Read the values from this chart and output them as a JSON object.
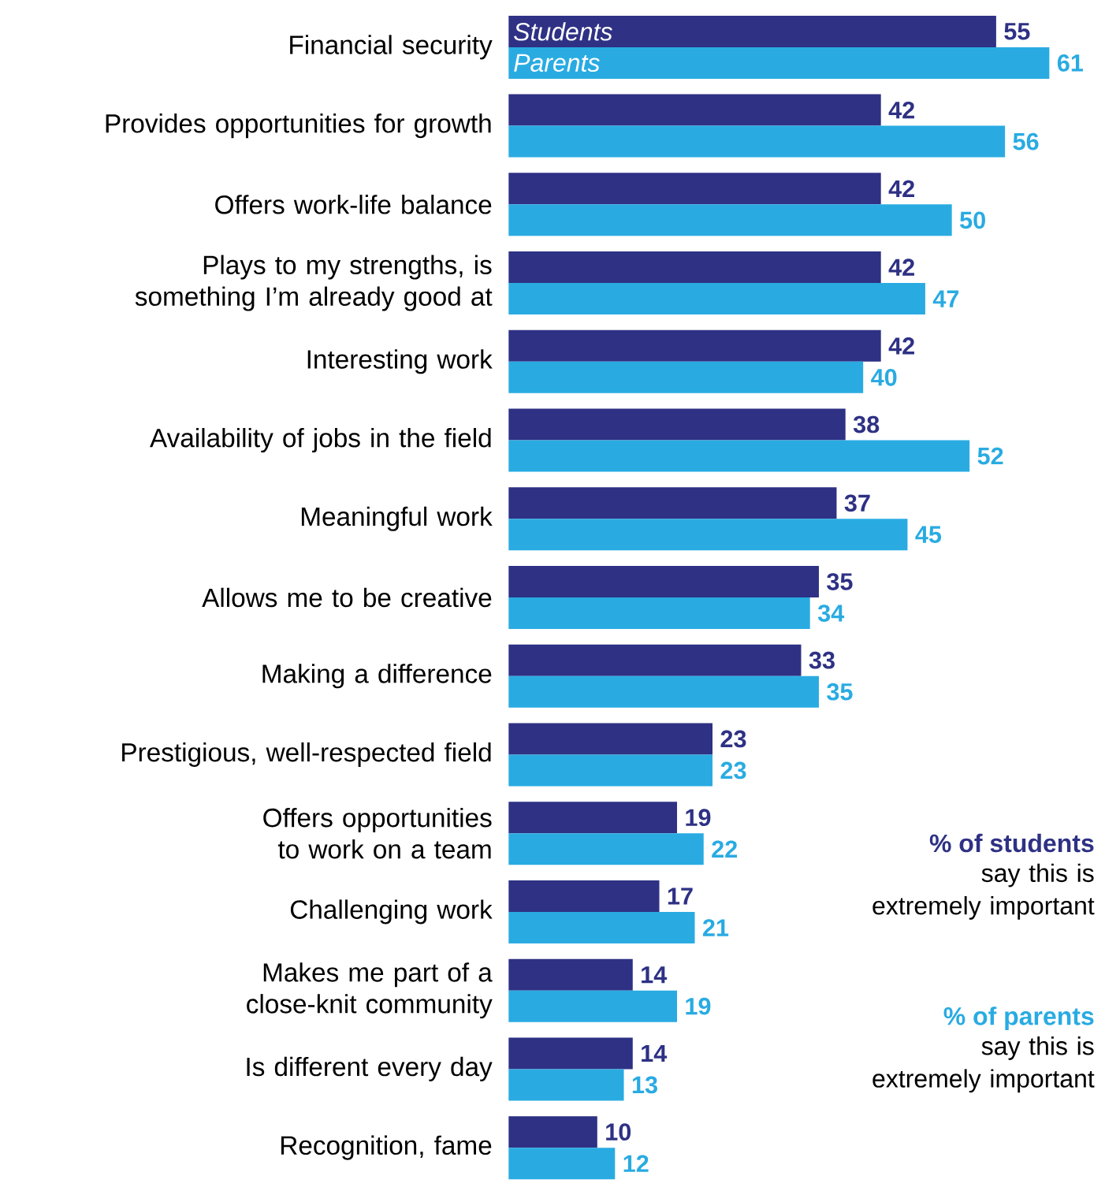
{
  "chart_data": {
    "type": "bar",
    "orientation": "horizontal",
    "categories": [
      "Financial security",
      "Provides opportunities for growth",
      "Offers work-life balance",
      "Plays to my strengths, is something I’m already good at",
      "Interesting work",
      "Availability of jobs in the field",
      "Meaningful work",
      "Allows me to be creative",
      "Making a difference",
      "Prestigious, well-respected field",
      "Offers opportunities to work on a team",
      "Challenging work",
      "Makes me part of a close-knit community",
      "Is different every day",
      "Recognition, fame"
    ],
    "series": [
      {
        "name": "Students",
        "color": "#2e3184",
        "values": [
          55,
          42,
          42,
          42,
          42,
          38,
          37,
          35,
          33,
          23,
          19,
          17,
          14,
          14,
          10
        ]
      },
      {
        "name": "Parents",
        "color": "#29abe2",
        "values": [
          61,
          56,
          50,
          47,
          40,
          52,
          45,
          34,
          35,
          23,
          22,
          21,
          19,
          13,
          12
        ]
      }
    ],
    "data_labels": true,
    "annotations": [
      "% of students",
      "say this is extremely important",
      "% of parents",
      "say this is extremely important"
    ]
  }
}
